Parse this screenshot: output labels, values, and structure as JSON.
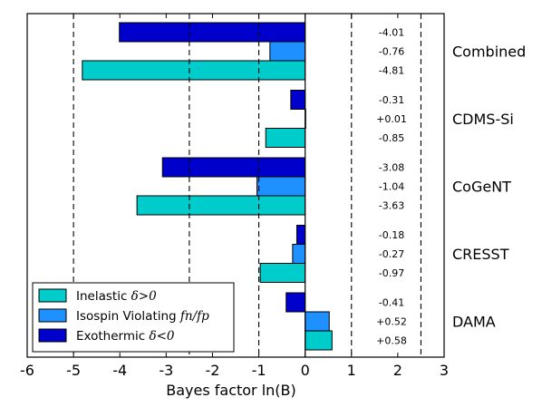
{
  "chart_data": {
    "type": "bar",
    "orientation": "horizontal",
    "xlabel": "Bayes factor ln(B)",
    "xlim": [
      -6,
      3
    ],
    "xticks": [
      "-6",
      "-5",
      "-4",
      "-3",
      "-2",
      "-1",
      "0",
      "1",
      "2",
      "3"
    ],
    "reference_lines": [
      -5,
      -2.5,
      -1,
      1,
      2.5
    ],
    "groups": [
      "Combined",
      "CDMS-Si",
      "CoGeNT",
      "CRESST",
      "DAMA"
    ],
    "series": [
      {
        "name": "Inelastic",
        "math": "δ>0",
        "color": "#00cccc",
        "values": [
          -4.81,
          -0.85,
          -3.63,
          -0.97,
          0.58
        ],
        "labels": [
          "-4.81",
          "-0.85",
          "-3.63",
          "-0.97",
          "+0.58"
        ]
      },
      {
        "name": "Isospin Violating",
        "math": "fn/fp",
        "color": "#1e90ff",
        "values": [
          -0.76,
          0.01,
          -1.04,
          -0.27,
          0.52
        ],
        "labels": [
          "-0.76",
          "+0.01",
          "-1.04",
          "-0.27",
          "+0.52"
        ]
      },
      {
        "name": "Exothermic",
        "math": "δ<0",
        "color": "#0000cd",
        "values": [
          -4.01,
          -0.31,
          -3.08,
          -0.18,
          -0.41
        ],
        "labels": [
          "-4.01",
          "-0.31",
          "-3.08",
          "-0.18",
          "-0.41"
        ]
      }
    ],
    "legend": {
      "placement": "lower-left",
      "order": [
        0,
        1,
        2
      ]
    },
    "grid": false
  }
}
